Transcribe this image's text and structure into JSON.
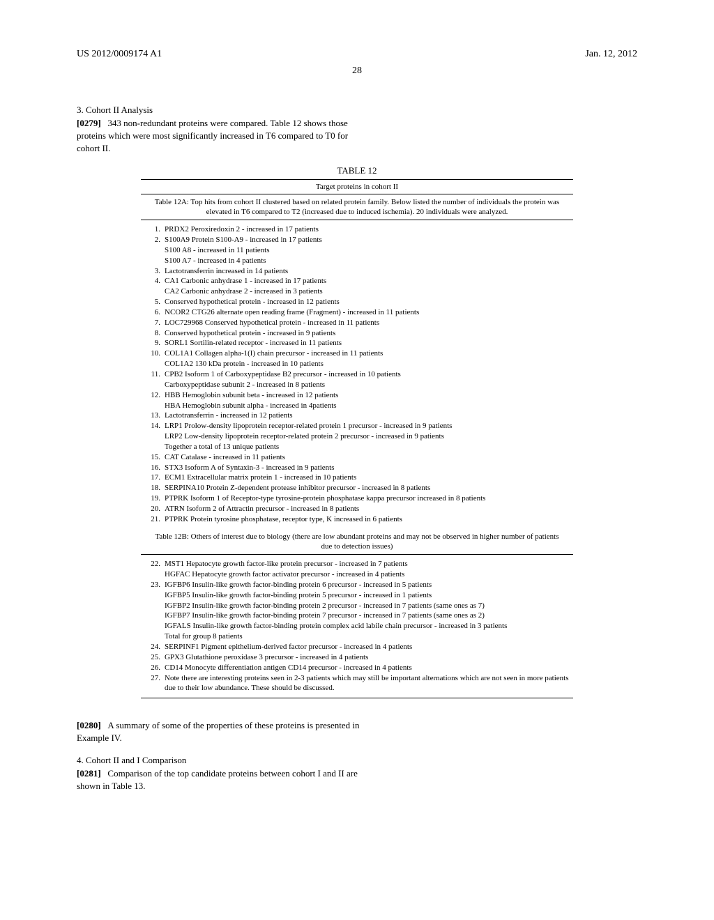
{
  "header": {
    "doc_number": "US 2012/0009174 A1",
    "date": "Jan. 12, 2012",
    "page_number": "28"
  },
  "sections": {
    "s1_title": "3. Cohort II Analysis",
    "p1_num": "[0279]",
    "p1_text": "343 non-redundant proteins were compared. Table 12 shows those proteins which were most significantly increased in T6 compared to T0 for cohort II.",
    "p2_num": "[0280]",
    "p2_text": "A summary of some of the properties of these proteins is presented in Example IV.",
    "s2_title": "4. Cohort II and I Comparison",
    "p3_num": "[0281]",
    "p3_text": "Comparison of the top candidate proteins between cohort I and II are shown in Table 13."
  },
  "table12": {
    "label": "TABLE 12",
    "title": "Target proteins in cohort II",
    "caption_a": "Table 12A: Top hits from cohort II clustered based on related protein family. Below listed the number of individuals the protein was elevated in T6 compared to T2 (increased due to induced ischemia). 20 individuals were analyzed.",
    "items_a": [
      {
        "n": "1.",
        "lines": [
          "PRDX2 Peroxiredoxin 2 - increased in 17 patients"
        ]
      },
      {
        "n": "2.",
        "lines": [
          "S100A9 Protein S100-A9 - increased in 17 patients",
          "S100 A8 - increased in 11 patients",
          "S100 A7 - increased in 4 patients"
        ]
      },
      {
        "n": "3.",
        "lines": [
          "Lactotransferrin increased in 14 patients"
        ]
      },
      {
        "n": "4.",
        "lines": [
          "CA1 Carbonic anhydrase 1 - increased in 17 patients",
          "CA2 Carbonic anhydrase 2 - increased in 3 patients"
        ]
      },
      {
        "n": "5.",
        "lines": [
          "Conserved hypothetical protein - increased in 12 patients"
        ]
      },
      {
        "n": "6.",
        "lines": [
          "NCOR2 CTG26 alternate open reading frame (Fragment) - increased in 11 patients"
        ]
      },
      {
        "n": "7.",
        "lines": [
          "LOC729968 Conserved hypothetical protein - increased in 11 patients"
        ]
      },
      {
        "n": "8.",
        "lines": [
          "Conserved hypothetical protein - increased in 9 patients"
        ]
      },
      {
        "n": "9.",
        "lines": [
          "SORL1 Sortilin-related receptor - increased in 11 patients"
        ]
      },
      {
        "n": "10.",
        "lines": [
          "COL1A1 Collagen alpha-1(I) chain precursor - increased in 11 patients",
          "COL1A2 130 kDa protein - increased in 10 patients"
        ]
      },
      {
        "n": "11.",
        "lines": [
          "CPB2 Isoform 1 of Carboxypeptidase B2 precursor - increased in 10 patients",
          "Carboxypeptidase subunit 2 - increased in 8 patients"
        ]
      },
      {
        "n": "12.",
        "lines": [
          "HBB Hemoglobin subunit beta - increased in 12 patients",
          "HBA Hemoglobin subunit alpha - increased in 4patients"
        ]
      },
      {
        "n": "13.",
        "lines": [
          "Lactotransferrin - increased in 12 patients"
        ]
      },
      {
        "n": "14.",
        "lines": [
          "LRP1 Prolow-density lipoprotein receptor-related protein 1 precursor - increased in 9 patients",
          "LRP2 Low-density lipoprotein receptor-related protein 2 precursor - increased in 9 patients",
          "Together a total of 13 unique patients"
        ]
      },
      {
        "n": "15.",
        "lines": [
          "CAT Catalase - increased in 11 patients"
        ]
      },
      {
        "n": "16.",
        "lines": [
          "STX3 Isoform A of Syntaxin-3 - increased in 9 patients"
        ]
      },
      {
        "n": "17.",
        "lines": [
          "ECM1 Extracellular matrix protein 1 - increased in 10 patients"
        ]
      },
      {
        "n": "18.",
        "lines": [
          "SERPINA10 Protein Z-dependent protease inhibitor precursor - increased in 8 patients"
        ]
      },
      {
        "n": "19.",
        "lines": [
          "PTPRK Isoform 1 of Receptor-type tyrosine-protein phosphatase kappa precursor increased in 8 patients"
        ]
      },
      {
        "n": "20.",
        "lines": [
          "ATRN Isoform 2 of Attractin precursor - increased in 8 patients"
        ]
      },
      {
        "n": "21.",
        "lines": [
          "PTPRK Protein tyrosine phosphatase, receptor type, K increased in 6 patients"
        ]
      }
    ],
    "caption_b": "Table 12B: Others of interest due to biology (there are low abundant proteins and may not be observed in higher number of patients due to detection issues)",
    "items_b": [
      {
        "n": "22.",
        "lines": [
          "MST1 Hepatocyte growth factor-like protein precursor - increased in 7 patients",
          "HGFAC Hepatocyte growth factor activator precursor - increased in 4 patients"
        ]
      },
      {
        "n": "23.",
        "lines": [
          "IGFBP6 Insulin-like growth factor-binding protein 6 precursor - increased in 5 patients",
          "IGFBP5 Insulin-like growth factor-binding protein 5 precursor - increased in 1 patients",
          "IGFBP2 Insulin-like growth factor-binding protein 2 precursor - increased in 7 patients (same ones as 7)",
          "IGFBP7 Insulin-like growth factor-binding protein 7 precursor - increased in 7 patients (same ones as 2)",
          "IGFALS Insulin-like growth factor-binding protein complex acid labile chain precursor - increased in 3 patients",
          "Total for group 8 patients"
        ]
      },
      {
        "n": "24.",
        "lines": [
          "SERPINF1 Pigment epithelium-derived factor precursor - increased in 4 patients"
        ]
      },
      {
        "n": "25.",
        "lines": [
          "GPX3 Glutathione peroxidase 3 precursor - increased in 4 patients"
        ]
      },
      {
        "n": "26.",
        "lines": [
          "CD14 Monocyte differentiation antigen CD14 precursor - increased in 4 patients"
        ]
      },
      {
        "n": "27.",
        "lines": [
          "Note there are interesting proteins seen in 2-3 patients which may still be important alternations which are not seen in more patients due to their low abundance. These should be discussed."
        ]
      }
    ]
  }
}
